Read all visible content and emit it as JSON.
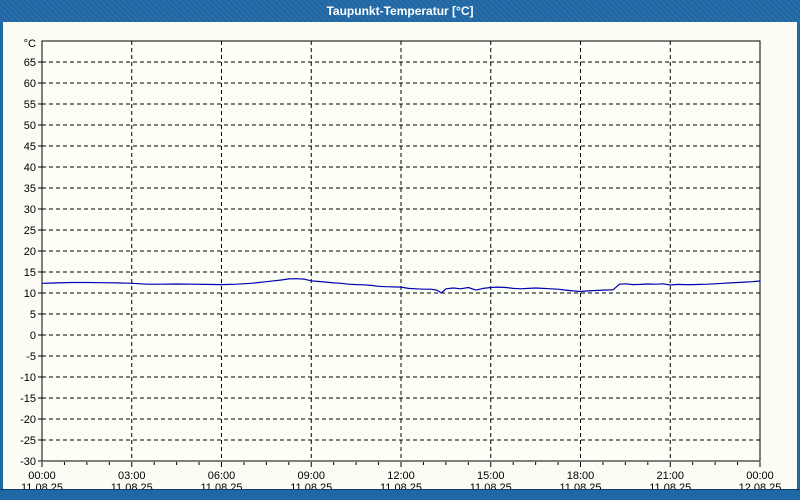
{
  "window": {
    "title": "Taupunkt-Temperatur [°C]"
  },
  "colors": {
    "titlebar_bg": "#1f68a6",
    "frame_bg": "#1f68a6",
    "bottombar_bg": "#1f68a6",
    "page_bg": "#fbfdf4",
    "plot_bg": "#fcfff6",
    "grid": "#000000",
    "axis": "#000000",
    "label_text": "#000000",
    "title_text": "#ffffff",
    "series_line": "#0000b3"
  },
  "chart_data": {
    "type": "line",
    "title": "Taupunkt-Temperatur [°C]",
    "grid": "dashed",
    "legend": "none",
    "y_axis": {
      "unit": "°C",
      "range": [
        -30,
        70
      ],
      "tick_step": 5,
      "tick_labels": [
        "65",
        "60",
        "55",
        "50",
        "45",
        "40",
        "35",
        "30",
        "25",
        "20",
        "15",
        "10",
        "5",
        "0",
        "-5",
        "-10",
        "-15",
        "-20",
        "-25",
        "-30"
      ]
    },
    "x_axis": {
      "range_hours": 24,
      "minor_tick_interval_hours": 0.75,
      "major_ticks": [
        {
          "hours": 0,
          "time": "00:00",
          "date": "11.08.25"
        },
        {
          "hours": 3,
          "time": "03:00",
          "date": "11.08.25"
        },
        {
          "hours": 6,
          "time": "06:00",
          "date": "11.08.25"
        },
        {
          "hours": 9,
          "time": "09:00",
          "date": "11.08.25"
        },
        {
          "hours": 12,
          "time": "12:00",
          "date": "11.08.25"
        },
        {
          "hours": 15,
          "time": "15:00",
          "date": "11.08.25"
        },
        {
          "hours": 18,
          "time": "18:00",
          "date": "11.08.25"
        },
        {
          "hours": 21,
          "time": "21:00",
          "date": "11.08.25"
        },
        {
          "hours": 24,
          "time": "00:00",
          "date": "12.08.25"
        }
      ]
    },
    "series": [
      {
        "name": "Taupunkt-Temperatur",
        "color": "#0000b3",
        "points": [
          [
            0,
            12.3
          ],
          [
            0.25,
            12.35
          ],
          [
            0.5,
            12.4
          ],
          [
            1,
            12.5
          ],
          [
            1.5,
            12.5
          ],
          [
            2,
            12.45
          ],
          [
            2.5,
            12.4
          ],
          [
            3,
            12.3
          ],
          [
            3.5,
            12.1
          ],
          [
            4,
            12.1
          ],
          [
            4.5,
            12.15
          ],
          [
            5,
            12.1
          ],
          [
            5.5,
            12.05
          ],
          [
            6,
            12.0
          ],
          [
            6.5,
            12.1
          ],
          [
            7,
            12.3
          ],
          [
            7.5,
            12.7
          ],
          [
            8,
            13.1
          ],
          [
            8.25,
            13.35
          ],
          [
            8.5,
            13.4
          ],
          [
            8.75,
            13.3
          ],
          [
            9,
            12.9
          ],
          [
            9.25,
            12.75
          ],
          [
            9.5,
            12.6
          ],
          [
            9.75,
            12.4
          ],
          [
            10,
            12.3
          ],
          [
            10.25,
            12.1
          ],
          [
            10.5,
            12.0
          ],
          [
            10.75,
            11.95
          ],
          [
            11,
            11.8
          ],
          [
            11.25,
            11.6
          ],
          [
            11.5,
            11.5
          ],
          [
            11.75,
            11.45
          ],
          [
            12,
            11.4
          ],
          [
            12.25,
            11.1
          ],
          [
            12.5,
            11.0
          ],
          [
            12.75,
            10.9
          ],
          [
            13,
            10.9
          ],
          [
            13.2,
            10.7
          ],
          [
            13.35,
            10.0
          ],
          [
            13.5,
            11.0
          ],
          [
            13.75,
            11.2
          ],
          [
            14,
            11.0
          ],
          [
            14.25,
            11.3
          ],
          [
            14.5,
            10.7
          ],
          [
            14.75,
            11.1
          ],
          [
            15,
            11.3
          ],
          [
            15.25,
            11.4
          ],
          [
            15.5,
            11.3
          ],
          [
            15.75,
            11.1
          ],
          [
            16,
            11.0
          ],
          [
            16.25,
            11.1
          ],
          [
            16.5,
            11.2
          ],
          [
            16.75,
            11.1
          ],
          [
            17,
            11.0
          ],
          [
            17.25,
            10.9
          ],
          [
            17.5,
            10.7
          ],
          [
            17.75,
            10.5
          ],
          [
            18,
            10.35
          ],
          [
            18.25,
            10.5
          ],
          [
            18.5,
            10.6
          ],
          [
            18.75,
            10.7
          ],
          [
            19,
            10.75
          ],
          [
            19.1,
            10.8
          ],
          [
            19.3,
            12.1
          ],
          [
            19.5,
            12.2
          ],
          [
            19.75,
            12.0
          ],
          [
            20,
            12.05
          ],
          [
            20.25,
            12.15
          ],
          [
            20.5,
            12.1
          ],
          [
            20.75,
            12.2
          ],
          [
            21,
            11.9
          ],
          [
            21.25,
            12.05
          ],
          [
            21.5,
            12.0
          ],
          [
            21.75,
            12.0
          ],
          [
            22,
            12.05
          ],
          [
            22.25,
            12.1
          ],
          [
            22.5,
            12.2
          ],
          [
            22.75,
            12.3
          ],
          [
            23,
            12.4
          ],
          [
            23.25,
            12.5
          ],
          [
            23.5,
            12.6
          ],
          [
            23.75,
            12.7
          ],
          [
            24,
            12.85
          ]
        ]
      }
    ]
  }
}
